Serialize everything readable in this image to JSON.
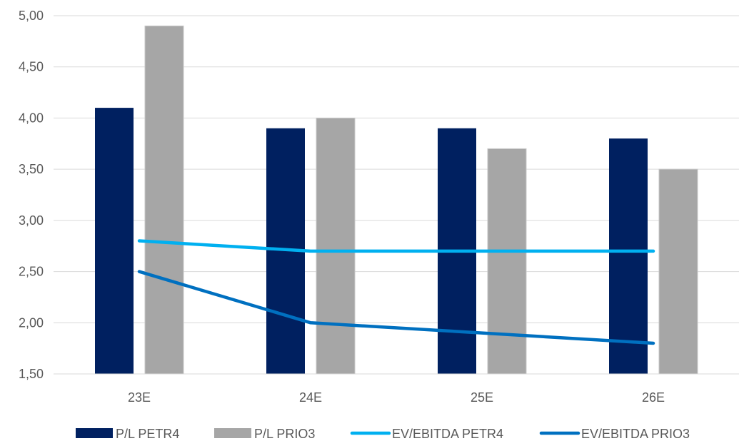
{
  "chart_data": {
    "type": "bar",
    "categories": [
      "23E",
      "24E",
      "25E",
      "26E"
    ],
    "series": [
      {
        "name": "P/L PETR4",
        "kind": "bar",
        "color": "#002060",
        "values": [
          4.1,
          3.9,
          3.9,
          3.8
        ]
      },
      {
        "name": "P/L PRIO3",
        "kind": "bar",
        "color": "#A6A6A6",
        "values": [
          4.9,
          4.0,
          3.7,
          3.5
        ]
      },
      {
        "name": "EV/EBITDA PETR4",
        "kind": "line",
        "color": "#00B0F0",
        "values": [
          2.8,
          2.7,
          2.7,
          2.7
        ]
      },
      {
        "name": "EV/EBITDA PRIO3",
        "kind": "line",
        "color": "#0070C0",
        "values": [
          2.5,
          2.0,
          1.9,
          1.8
        ]
      }
    ],
    "ylim": [
      1.5,
      5.0
    ],
    "yticks": [
      "1,50",
      "2,00",
      "2,50",
      "3,00",
      "3,50",
      "4,00",
      "4,50",
      "5,00"
    ],
    "ytick_values": [
      1.5,
      2.0,
      2.5,
      3.0,
      3.5,
      4.0,
      4.5,
      5.0
    ],
    "grid": true,
    "legend_position": "bottom"
  }
}
